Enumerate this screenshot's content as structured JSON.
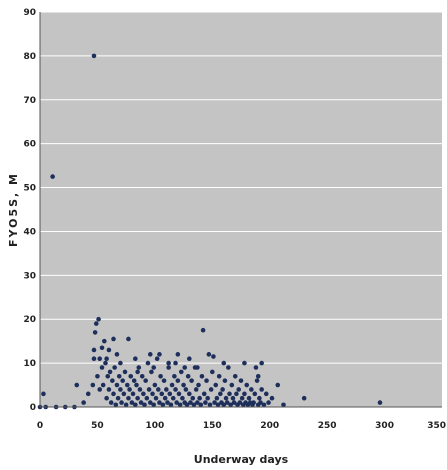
{
  "chart_data": {
    "type": "scatter",
    "title": "",
    "xlabel": "Underway days",
    "ylabel": "FYO5S, M",
    "xlim": [
      0,
      350
    ],
    "ylim": [
      0,
      90
    ],
    "xticks": [
      0,
      50,
      100,
      150,
      200,
      250,
      300,
      350
    ],
    "yticks": [
      0,
      10,
      20,
      30,
      40,
      50,
      60,
      70,
      80,
      90
    ],
    "xtick_labels": [
      "0",
      "50",
      "100",
      "150",
      "200",
      "250",
      "300",
      "350"
    ],
    "ytick_labels": [
      "0",
      "10",
      "20",
      "30",
      "40",
      "50",
      "60",
      "70",
      "80",
      "90"
    ],
    "grid": "horizontal",
    "legend": "none",
    "colors": {
      "plot_bg": "#c4c4c4",
      "grid": "#ffffff",
      "marker": "#1e2f5c"
    },
    "series": [
      {
        "points": [
          [
            47,
            80
          ],
          [
            11,
            52.5
          ],
          [
            49,
            19
          ],
          [
            51,
            20
          ],
          [
            48,
            17
          ],
          [
            56,
            15
          ],
          [
            64,
            15.5
          ],
          [
            77,
            15.5
          ],
          [
            142,
            17.5
          ],
          [
            147,
            12
          ],
          [
            151,
            11.5
          ],
          [
            47,
            13
          ],
          [
            54,
            13.5
          ],
          [
            60,
            13
          ],
          [
            52,
            11
          ],
          [
            47,
            11
          ],
          [
            46,
            5
          ],
          [
            42,
            3
          ],
          [
            38,
            1
          ],
          [
            32,
            5
          ],
          [
            30,
            0
          ],
          [
            22,
            0
          ],
          [
            5,
            0
          ],
          [
            3,
            3
          ],
          [
            0,
            0
          ],
          [
            14,
            0
          ],
          [
            50,
            7
          ],
          [
            52,
            4
          ],
          [
            54,
            9
          ],
          [
            55,
            5
          ],
          [
            57,
            10
          ],
          [
            58,
            2
          ],
          [
            59,
            7
          ],
          [
            60,
            4
          ],
          [
            61,
            8
          ],
          [
            62,
            1
          ],
          [
            63,
            6
          ],
          [
            64,
            3
          ],
          [
            65,
            9
          ],
          [
            66,
            0.5
          ],
          [
            67,
            5
          ],
          [
            68,
            2
          ],
          [
            69,
            7
          ],
          [
            70,
            4
          ],
          [
            71,
            1
          ],
          [
            72,
            6
          ],
          [
            73,
            3
          ],
          [
            74,
            8
          ],
          [
            75,
            0.5
          ],
          [
            76,
            5
          ],
          [
            77,
            2
          ],
          [
            78,
            4
          ],
          [
            79,
            7
          ],
          [
            80,
            1
          ],
          [
            81,
            3
          ],
          [
            82,
            6
          ],
          [
            83,
            0.5
          ],
          [
            84,
            5
          ],
          [
            85,
            2
          ],
          [
            86,
            9
          ],
          [
            87,
            4
          ],
          [
            88,
            1
          ],
          [
            89,
            7
          ],
          [
            90,
            3
          ],
          [
            91,
            0.5
          ],
          [
            92,
            6
          ],
          [
            93,
            2
          ],
          [
            94,
            10
          ],
          [
            95,
            4
          ],
          [
            96,
            1
          ],
          [
            97,
            8
          ],
          [
            98,
            3
          ],
          [
            99,
            0.5
          ],
          [
            100,
            5
          ],
          [
            101,
            2
          ],
          [
            102,
            11
          ],
          [
            103,
            4
          ],
          [
            104,
            1
          ],
          [
            105,
            7
          ],
          [
            106,
            3
          ],
          [
            107,
            0.5
          ],
          [
            108,
            6
          ],
          [
            109,
            2
          ],
          [
            110,
            4
          ],
          [
            111,
            1
          ],
          [
            112,
            9
          ],
          [
            113,
            3
          ],
          [
            114,
            0.5
          ],
          [
            115,
            5
          ],
          [
            116,
            2
          ],
          [
            117,
            7
          ],
          [
            118,
            4
          ],
          [
            119,
            1
          ],
          [
            120,
            6
          ],
          [
            121,
            3
          ],
          [
            122,
            0.5
          ],
          [
            123,
            8
          ],
          [
            124,
            2
          ],
          [
            125,
            5
          ],
          [
            126,
            1
          ],
          [
            127,
            4
          ],
          [
            128,
            0.5
          ],
          [
            129,
            7
          ],
          [
            130,
            3
          ],
          [
            131,
            1
          ],
          [
            132,
            6
          ],
          [
            133,
            2
          ],
          [
            134,
            0.5
          ],
          [
            135,
            9
          ],
          [
            136,
            4
          ],
          [
            137,
            1
          ],
          [
            138,
            5
          ],
          [
            139,
            2
          ],
          [
            140,
            0.5
          ],
          [
            141,
            7
          ],
          [
            143,
            3
          ],
          [
            144,
            1
          ],
          [
            145,
            6
          ],
          [
            146,
            2
          ],
          [
            148,
            0.5
          ],
          [
            149,
            4
          ],
          [
            150,
            8
          ],
          [
            152,
            1
          ],
          [
            153,
            5
          ],
          [
            154,
            2
          ],
          [
            155,
            0.5
          ],
          [
            156,
            7
          ],
          [
            157,
            3
          ],
          [
            158,
            1
          ],
          [
            159,
            4
          ],
          [
            160,
            0.5
          ],
          [
            161,
            6
          ],
          [
            162,
            2
          ],
          [
            163,
            1
          ],
          [
            164,
            9
          ],
          [
            165,
            3
          ],
          [
            166,
            0.5
          ],
          [
            167,
            5
          ],
          [
            168,
            2
          ],
          [
            169,
            1
          ],
          [
            170,
            7
          ],
          [
            171,
            3
          ],
          [
            172,
            0.5
          ],
          [
            173,
            4
          ],
          [
            174,
            1
          ],
          [
            175,
            6
          ],
          [
            176,
            2
          ],
          [
            177,
            0.5
          ],
          [
            178,
            3
          ],
          [
            179,
            1
          ],
          [
            180,
            5
          ],
          [
            181,
            0.5
          ],
          [
            182,
            2
          ],
          [
            183,
            1
          ],
          [
            184,
            4
          ],
          [
            185,
            0.5
          ],
          [
            186,
            1
          ],
          [
            187,
            3
          ],
          [
            188,
            9
          ],
          [
            189,
            6
          ],
          [
            190,
            0.5
          ],
          [
            191,
            2
          ],
          [
            192,
            1
          ],
          [
            193,
            4
          ],
          [
            195,
            0.5
          ],
          [
            197,
            3
          ],
          [
            199,
            1
          ],
          [
            202,
            2
          ],
          [
            207,
            5
          ],
          [
            212,
            0.5
          ],
          [
            230,
            2
          ],
          [
            296,
            1
          ],
          [
            58,
            11
          ],
          [
            70,
            10
          ],
          [
            83,
            11
          ],
          [
            96,
            12
          ],
          [
            104,
            12
          ],
          [
            118,
            10
          ],
          [
            130,
            11
          ],
          [
            160,
            10
          ],
          [
            178,
            10
          ],
          [
            190,
            7
          ],
          [
            193,
            10
          ],
          [
            85,
            8
          ],
          [
            99,
            9
          ],
          [
            112,
            10
          ],
          [
            126,
            9
          ],
          [
            137,
            9
          ],
          [
            67,
            12
          ],
          [
            120,
            12
          ]
        ]
      }
    ]
  }
}
